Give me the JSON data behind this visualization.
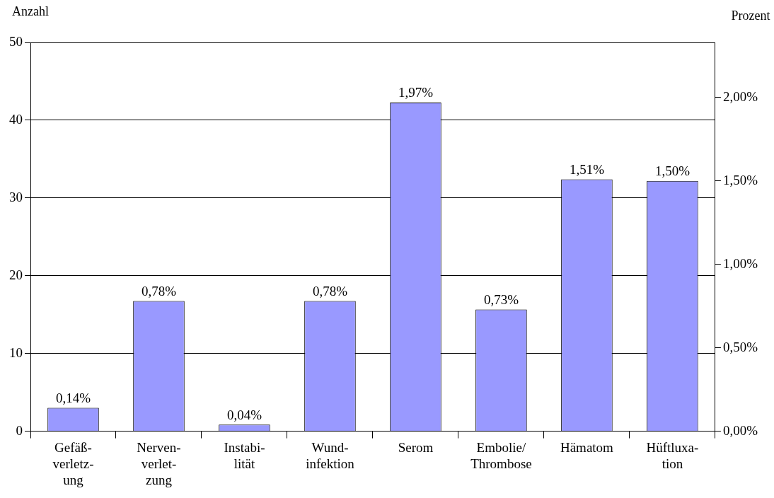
{
  "chart_data": {
    "type": "bar",
    "ylabel": "Anzahl",
    "y2label": "Prozent",
    "categories": [
      "Gefäß-\nverletz-\nung",
      "Nerven-\nverlet-\nzung",
      "Instabi-\nlität",
      "Wund-\ninfektion",
      "Serom",
      "Embolie/\nThrombose",
      "Hämatom",
      "Hüftluxa-\ntion"
    ],
    "series": [
      {
        "color": "#9999ff",
        "axis": "y2",
        "values": [
          0.14,
          0.78,
          0.04,
          0.78,
          1.97,
          0.73,
          1.51,
          1.5
        ],
        "value_labels": [
          "0,14%",
          "0,78%",
          "0,04%",
          "0,78%",
          "1,97%",
          "0,73%",
          "1,51%",
          "1,50%"
        ]
      }
    ],
    "ylim": [
      0,
      50
    ],
    "yticks": [
      0,
      10,
      20,
      30,
      40,
      50
    ],
    "y2lim": [
      0,
      2.33
    ],
    "y2ticks": [
      {
        "value": 0,
        "label": "0,00%"
      },
      {
        "value": 0.5,
        "label": "0,50%"
      },
      {
        "value": 1,
        "label": "1,00%"
      },
      {
        "value": 1.5,
        "label": "1,50%"
      },
      {
        "value": 2,
        "label": "2,00%"
      }
    ],
    "grid": "y",
    "legend": false
  }
}
